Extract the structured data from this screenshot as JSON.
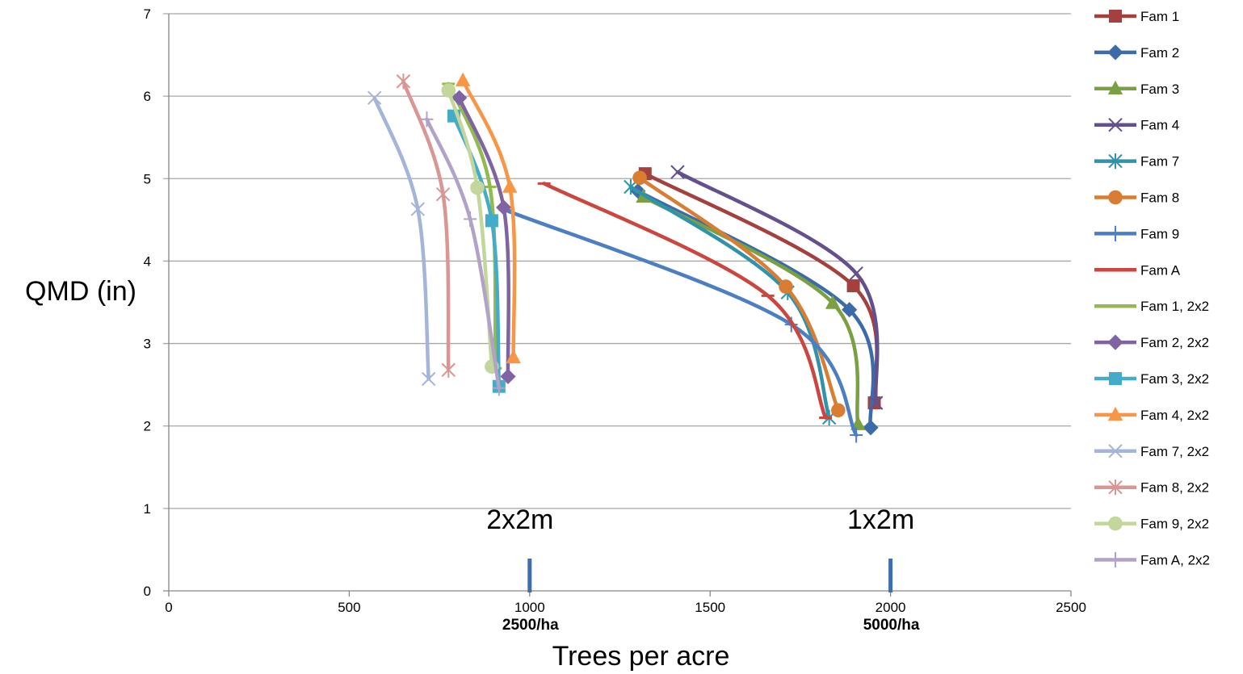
{
  "chart_data": {
    "type": "line",
    "title": "",
    "xlabel": "Trees per acre",
    "ylabel": "QMD (in)",
    "xlim": [
      0,
      2500
    ],
    "ylim": [
      0,
      7
    ],
    "xticks": [
      0,
      500,
      1000,
      1500,
      2000,
      2500
    ],
    "yticks": [
      0,
      1,
      2,
      3,
      4,
      5,
      6,
      7
    ],
    "grid": "horizontal",
    "legend_position": "right",
    "smooth": true,
    "annotations": [
      {
        "text": "2x2m",
        "x": 1000,
        "sublabel": "2500/ha"
      },
      {
        "text": "1x2m",
        "x": 2000,
        "sublabel": "5000/ha"
      }
    ],
    "series": [
      {
        "name": "Fam 1",
        "color": "#A4403D",
        "marker": "square",
        "points": [
          [
            1320,
            5.06
          ],
          [
            1897,
            3.7
          ],
          [
            1955,
            2.28
          ]
        ]
      },
      {
        "name": "Fam 2",
        "color": "#3B6CA9",
        "marker": "diamond",
        "points": [
          [
            1300,
            4.85
          ],
          [
            1886,
            3.41
          ],
          [
            1945,
            1.98
          ]
        ]
      },
      {
        "name": "Fam 3",
        "color": "#7BA041",
        "marker": "triangle",
        "points": [
          [
            1315,
            4.78
          ],
          [
            1840,
            3.49
          ],
          [
            1910,
            2.02
          ]
        ]
      },
      {
        "name": "Fam 4",
        "color": "#65508E",
        "marker": "x",
        "points": [
          [
            1410,
            5.08
          ],
          [
            1905,
            3.85
          ],
          [
            1960,
            2.28
          ]
        ]
      },
      {
        "name": "Fam 7",
        "color": "#2F93A9",
        "marker": "asterisk",
        "points": [
          [
            1280,
            4.9
          ],
          [
            1715,
            3.62
          ],
          [
            1830,
            2.1
          ]
        ]
      },
      {
        "name": "Fam 8",
        "color": "#D97D33",
        "marker": "circle",
        "points": [
          [
            1305,
            5.01
          ],
          [
            1710,
            3.69
          ],
          [
            1855,
            2.19
          ]
        ]
      },
      {
        "name": "Fam 9",
        "color": "#4C7EC4",
        "marker": "plus",
        "points": [
          [
            932,
            4.62
          ],
          [
            1725,
            3.23
          ],
          [
            1905,
            1.89
          ]
        ]
      },
      {
        "name": "Fam A",
        "color": "#CC4640",
        "marker": "dash",
        "points": [
          [
            1040,
            4.94
          ],
          [
            1660,
            3.58
          ],
          [
            1820,
            2.1
          ]
        ]
      },
      {
        "name": "Fam 1, 2x2",
        "color": "#93BA4E",
        "marker": "dash",
        "points": [
          [
            775,
            6.15
          ],
          [
            890,
            4.9
          ],
          [
            905,
            2.7
          ]
        ]
      },
      {
        "name": "Fam 2, 2x2",
        "color": "#8063A2",
        "marker": "diamond",
        "points": [
          [
            805,
            5.98
          ],
          [
            928,
            4.65
          ],
          [
            940,
            2.6
          ]
        ]
      },
      {
        "name": "Fam 3, 2x2",
        "color": "#44ACC8",
        "marker": "square",
        "points": [
          [
            790,
            5.76
          ],
          [
            895,
            4.49
          ],
          [
            915,
            2.48
          ]
        ]
      },
      {
        "name": "Fam 4, 2x2",
        "color": "#F79646",
        "marker": "triangle",
        "points": [
          [
            815,
            6.19
          ],
          [
            945,
            4.9
          ],
          [
            955,
            2.83
          ]
        ]
      },
      {
        "name": "Fam 7, 2x2",
        "color": "#A4B5D9",
        "marker": "x",
        "points": [
          [
            570,
            5.98
          ],
          [
            690,
            4.63
          ],
          [
            720,
            2.57
          ]
        ]
      },
      {
        "name": "Fam 8, 2x2",
        "color": "#D99694",
        "marker": "asterisk",
        "points": [
          [
            650,
            6.18
          ],
          [
            760,
            4.81
          ],
          [
            775,
            2.68
          ]
        ]
      },
      {
        "name": "Fam 9, 2x2",
        "color": "#C3D69B",
        "marker": "circle",
        "points": [
          [
            775,
            6.07
          ],
          [
            855,
            4.89
          ],
          [
            895,
            2.72
          ]
        ]
      },
      {
        "name": "Fam A, 2x2",
        "color": "#B3A2C7",
        "marker": "plus",
        "points": [
          [
            715,
            5.72
          ],
          [
            835,
            4.51
          ],
          [
            915,
            2.46
          ]
        ]
      }
    ]
  }
}
